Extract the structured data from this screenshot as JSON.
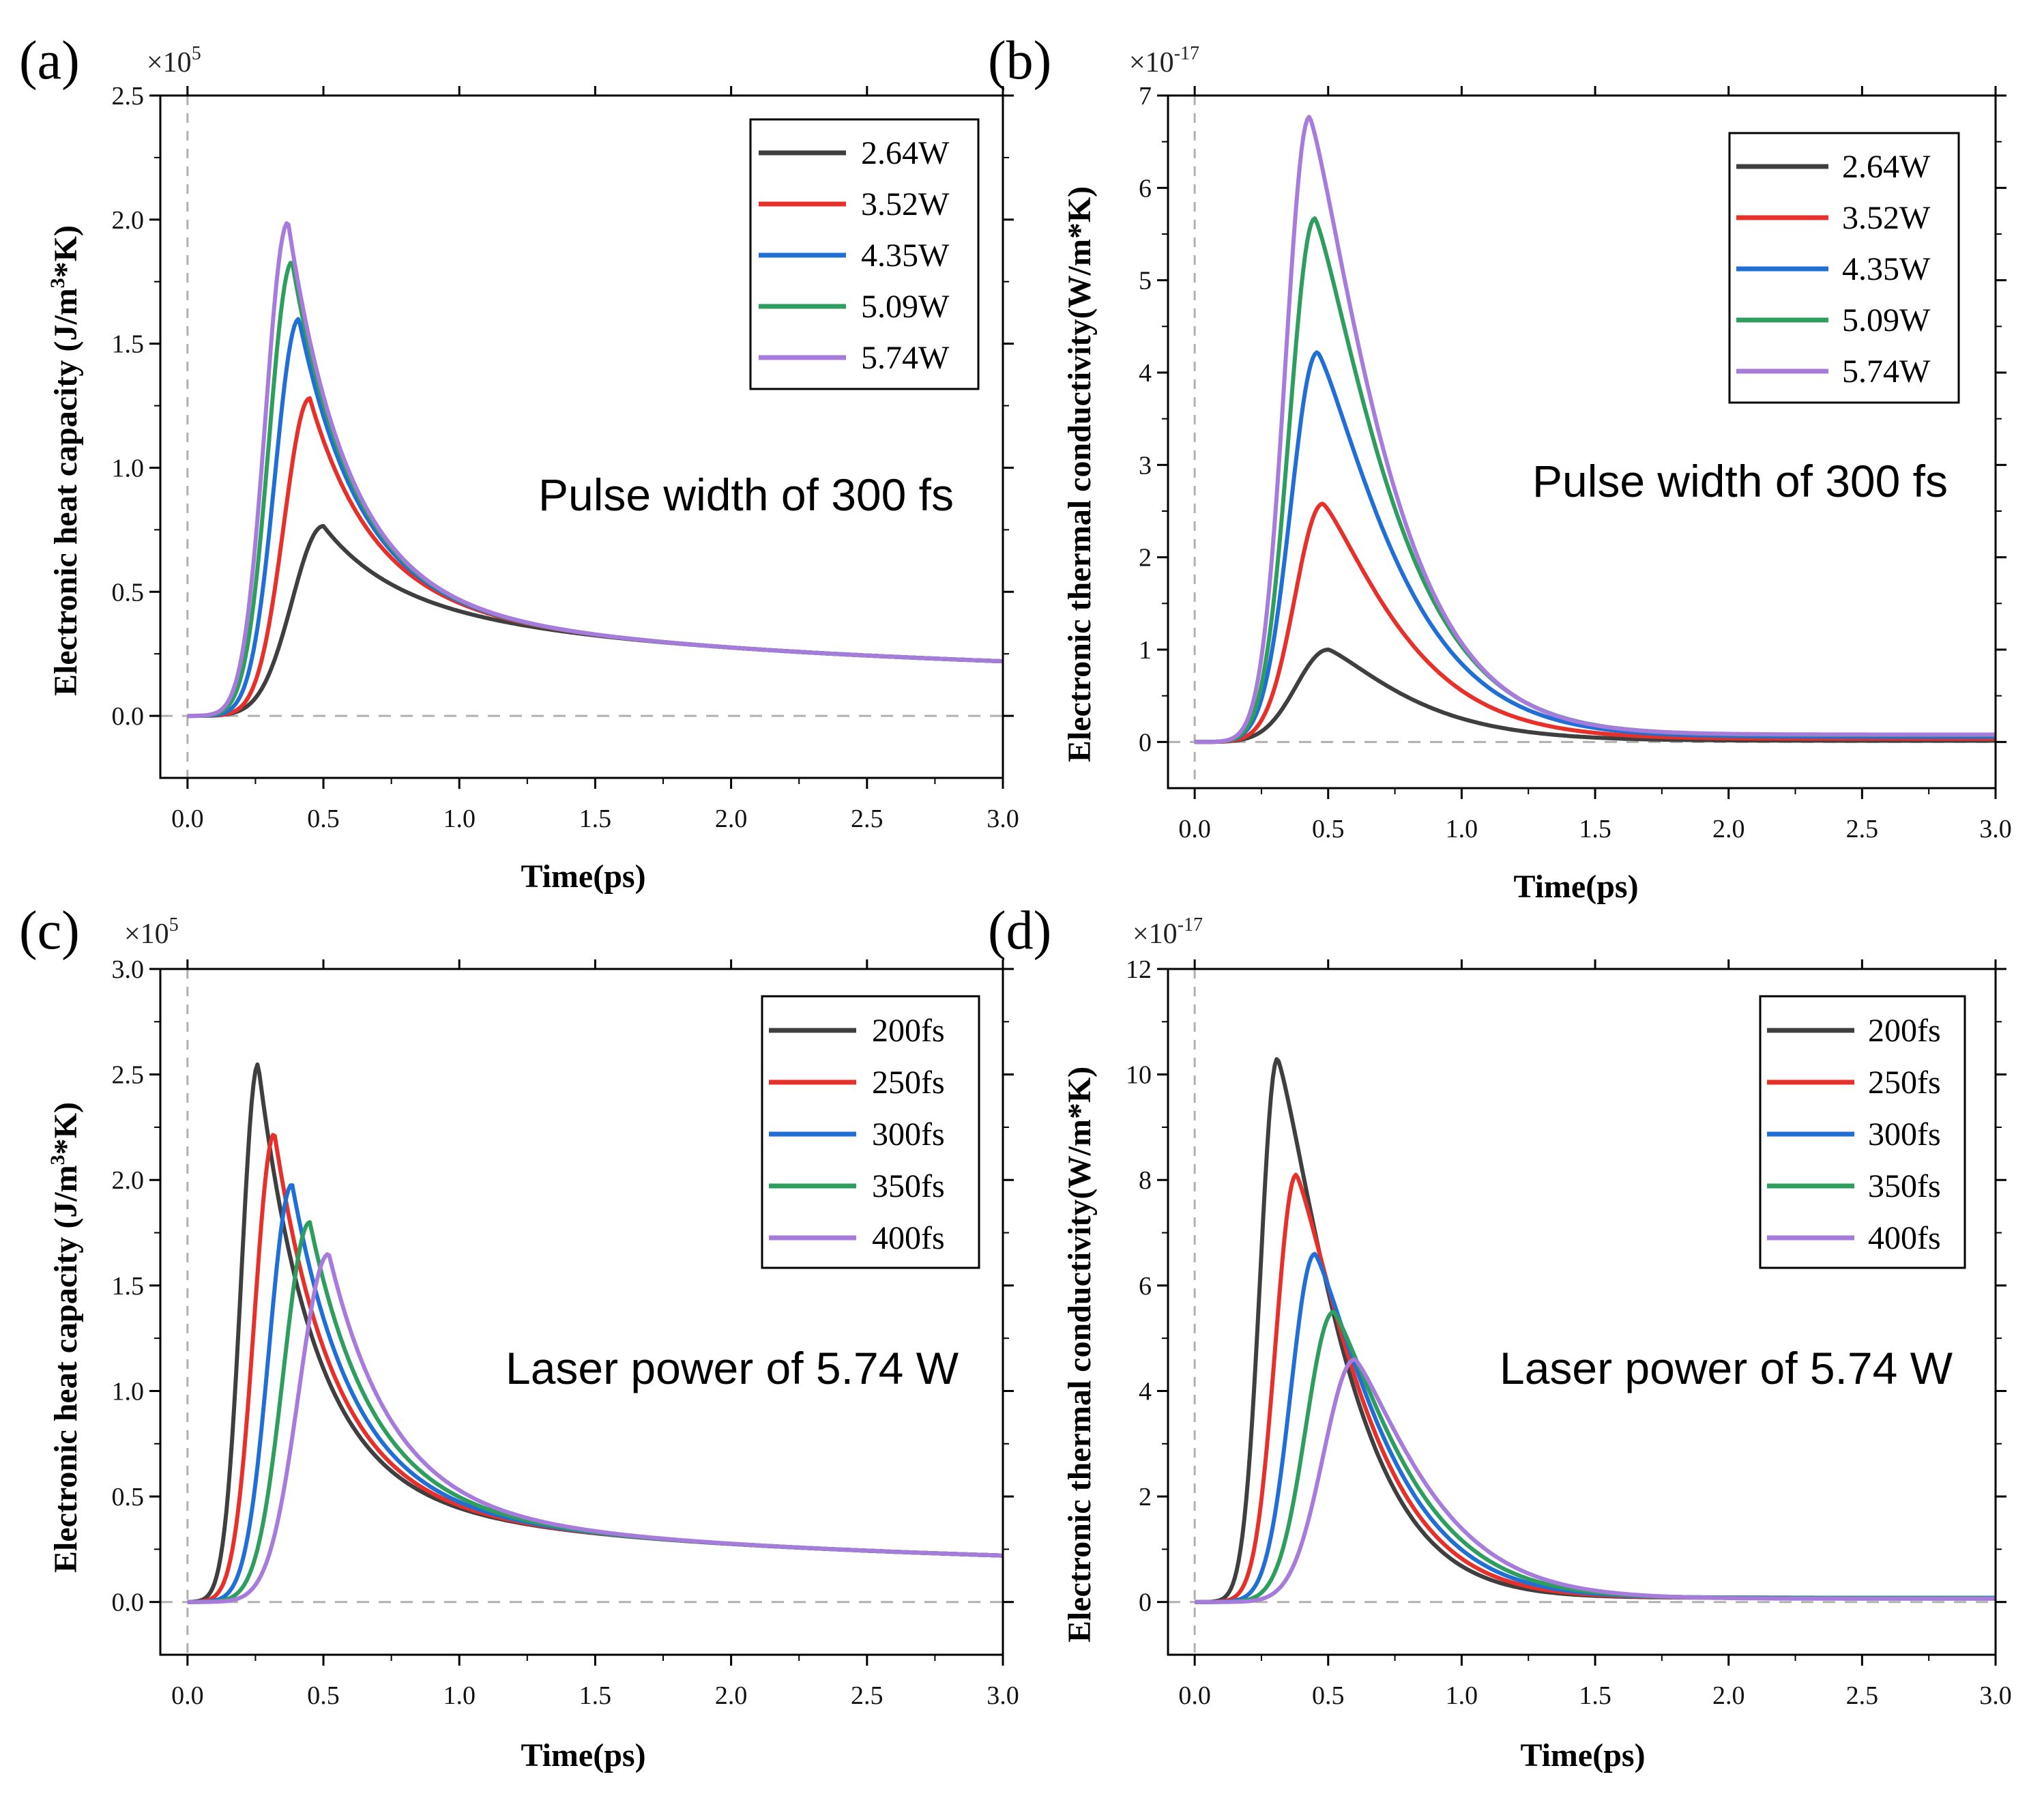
{
  "figure": {
    "colors": {
      "black": "#3f3f3f",
      "red": "#e8302a",
      "blue": "#1f6fd6",
      "green": "#2e9e5e",
      "purple": "#a77bdc",
      "zero_line": "#b0b0b0"
    }
  },
  "chart_data": [
    {
      "panel": "(a)",
      "type": "line",
      "xlabel": "Time(ps)",
      "ylabel_main": "Electronic heat capacity (J/m",
      "ylabel_sup": "3",
      "ylabel_tail": "*K)",
      "multiplier_base": "×10",
      "multiplier_exp": "5",
      "xlim": [
        -0.1,
        3.0
      ],
      "ylim": [
        -0.25,
        2.5
      ],
      "xticks": [
        0.0,
        0.5,
        1.0,
        1.5,
        2.0,
        2.5,
        3.0
      ],
      "xtick_labels": [
        "0.0",
        "0.5",
        "1.0",
        "1.5",
        "2.0",
        "2.5",
        "3.0"
      ],
      "yticks": [
        0.0,
        0.5,
        1.0,
        1.5,
        2.0,
        2.5
      ],
      "ytick_labels": [
        "0.0",
        "0.5",
        "1.0",
        "1.5",
        "2.0",
        "2.5"
      ],
      "annotation": "Pulse width of 300 fs",
      "model": "heat",
      "series": [
        {
          "name": "2.64W",
          "color": "#3f3f3f",
          "peak_x": 0.5,
          "peak_y": 0.765,
          "rise_w": 0.115,
          "tail_at_3": 0.22
        },
        {
          "name": "3.52W",
          "color": "#e8302a",
          "peak_x": 0.45,
          "peak_y": 1.28,
          "rise_w": 0.095,
          "tail_at_3": 0.22
        },
        {
          "name": "4.35W",
          "color": "#1f6fd6",
          "peak_x": 0.41,
          "peak_y": 1.6,
          "rise_w": 0.088,
          "tail_at_3": 0.22
        },
        {
          "name": "5.09W",
          "color": "#2e9e5e",
          "peak_x": 0.385,
          "peak_y": 1.83,
          "rise_w": 0.085,
          "tail_at_3": 0.22
        },
        {
          "name": "5.74W",
          "color": "#a77bdc",
          "peak_x": 0.37,
          "peak_y": 1.99,
          "rise_w": 0.083,
          "tail_at_3": 0.22
        }
      ]
    },
    {
      "panel": "(b)",
      "type": "line",
      "xlabel": "Time(ps)",
      "ylabel_main": "Electronic thermal conductivity(W/m*K)",
      "ylabel_sup": "",
      "ylabel_tail": "",
      "multiplier_base": "×10",
      "multiplier_exp": "-17",
      "xlim": [
        -0.1,
        3.0
      ],
      "ylim": [
        -0.5,
        7.0
      ],
      "xticks": [
        0.0,
        0.5,
        1.0,
        1.5,
        2.0,
        2.5,
        3.0
      ],
      "xtick_labels": [
        "0.0",
        "0.5",
        "1.0",
        "1.5",
        "2.0",
        "2.5",
        "3.0"
      ],
      "yticks": [
        0,
        1,
        2,
        3,
        4,
        5,
        6,
        7
      ],
      "ytick_labels": [
        "0",
        "1",
        "2",
        "3",
        "4",
        "5",
        "6",
        "7"
      ],
      "annotation": "Pulse width of 300 fs",
      "model": "conductivity",
      "series": [
        {
          "name": "2.64W",
          "color": "#3f3f3f",
          "peak_x": 0.5,
          "peak_y": 1.0,
          "rise_w": 0.12,
          "decay": 0.38
        },
        {
          "name": "3.52W",
          "color": "#e8302a",
          "peak_x": 0.48,
          "peak_y": 2.58,
          "rise_w": 0.105,
          "decay": 0.36
        },
        {
          "name": "4.35W",
          "color": "#1f6fd6",
          "peak_x": 0.46,
          "peak_y": 4.22,
          "rise_w": 0.1,
          "decay": 0.36
        },
        {
          "name": "5.09W",
          "color": "#2e9e5e",
          "peak_x": 0.45,
          "peak_y": 5.67,
          "rise_w": 0.095,
          "decay": 0.35
        },
        {
          "name": "5.74W",
          "color": "#a77bdc",
          "peak_x": 0.43,
          "peak_y": 6.77,
          "rise_w": 0.09,
          "decay": 0.34
        }
      ]
    },
    {
      "panel": "(c)",
      "type": "line",
      "xlabel": "Time(ps)",
      "ylabel_main": "Electronic heat capacity (J/m",
      "ylabel_sup": "3",
      "ylabel_tail": "*K)",
      "multiplier_base": "×10",
      "multiplier_exp": "5",
      "xlim": [
        -0.1,
        3.0
      ],
      "ylim": [
        -0.25,
        3.0
      ],
      "xticks": [
        0.0,
        0.5,
        1.0,
        1.5,
        2.0,
        2.5,
        3.0
      ],
      "xtick_labels": [
        "0.0",
        "0.5",
        "1.0",
        "1.5",
        "2.0",
        "2.5",
        "3.0"
      ],
      "yticks": [
        0.0,
        0.5,
        1.0,
        1.5,
        2.0,
        2.5,
        3.0
      ],
      "ytick_labels": [
        "0.0",
        "0.5",
        "1.0",
        "1.5",
        "2.0",
        "2.5",
        "3.0"
      ],
      "annotation": "Laser power of 5.74 W",
      "model": "heat",
      "series": [
        {
          "name": "200fs",
          "color": "#3f3f3f",
          "peak_x": 0.26,
          "peak_y": 2.55,
          "rise_w": 0.062,
          "tail_at_3": 0.22
        },
        {
          "name": "250fs",
          "color": "#e8302a",
          "peak_x": 0.32,
          "peak_y": 2.22,
          "rise_w": 0.074,
          "tail_at_3": 0.22
        },
        {
          "name": "300fs",
          "color": "#1f6fd6",
          "peak_x": 0.385,
          "peak_y": 1.98,
          "rise_w": 0.085,
          "tail_at_3": 0.22
        },
        {
          "name": "350fs",
          "color": "#2e9e5e",
          "peak_x": 0.45,
          "peak_y": 1.8,
          "rise_w": 0.097,
          "tail_at_3": 0.22
        },
        {
          "name": "400fs",
          "color": "#a77bdc",
          "peak_x": 0.52,
          "peak_y": 1.65,
          "rise_w": 0.11,
          "tail_at_3": 0.22
        }
      ]
    },
    {
      "panel": "(d)",
      "type": "line",
      "xlabel": "Time(ps)",
      "ylabel_main": "Electronic thermal conductivity(W/m*K)",
      "ylabel_sup": "",
      "ylabel_tail": "",
      "multiplier_base": "×10",
      "multiplier_exp": "-17",
      "xlim": [
        -0.1,
        3.0
      ],
      "ylim": [
        -1.0,
        12.0
      ],
      "xticks": [
        0.0,
        0.5,
        1.0,
        1.5,
        2.0,
        2.5,
        3.0
      ],
      "xtick_labels": [
        "0.0",
        "0.5",
        "1.0",
        "1.5",
        "2.0",
        "2.5",
        "3.0"
      ],
      "yticks": [
        0,
        2,
        4,
        6,
        8,
        10,
        12
      ],
      "ytick_labels": [
        "0",
        "2",
        "4",
        "6",
        "8",
        "10",
        "12"
      ],
      "annotation": "Laser power of 5.74 W",
      "model": "conductivity",
      "series": [
        {
          "name": "200fs",
          "color": "#3f3f3f",
          "peak_x": 0.31,
          "peak_y": 10.3,
          "rise_w": 0.064,
          "decay": 0.3
        },
        {
          "name": "250fs",
          "color": "#e8302a",
          "peak_x": 0.38,
          "peak_y": 8.1,
          "rise_w": 0.077,
          "decay": 0.31
        },
        {
          "name": "300fs",
          "color": "#1f6fd6",
          "peak_x": 0.45,
          "peak_y": 6.6,
          "rise_w": 0.09,
          "decay": 0.32
        },
        {
          "name": "350fs",
          "color": "#2e9e5e",
          "peak_x": 0.52,
          "peak_y": 5.5,
          "rise_w": 0.103,
          "decay": 0.33
        },
        {
          "name": "400fs",
          "color": "#a77bdc",
          "peak_x": 0.6,
          "peak_y": 4.6,
          "rise_w": 0.118,
          "decay": 0.34
        }
      ]
    }
  ]
}
